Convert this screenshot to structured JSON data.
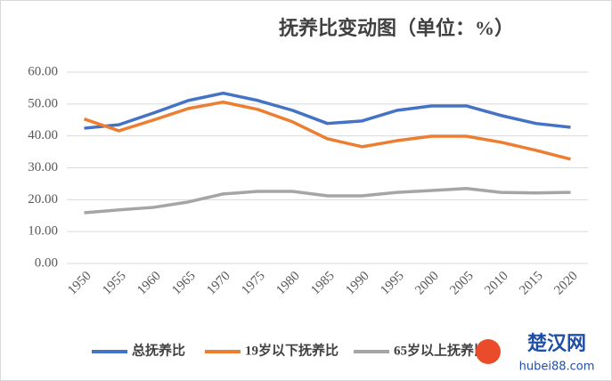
{
  "chart_data": {
    "type": "line",
    "title": "抚养比变动图（单位：%）",
    "categories": [
      "1950",
      "1955",
      "1960",
      "1965",
      "1970",
      "1975",
      "1980",
      "1985",
      "1990",
      "1995",
      "2000",
      "2005",
      "2010",
      "2015",
      "2020"
    ],
    "series": [
      {
        "name": "总抚养比",
        "color": "#4472c4",
        "values": [
          42.4,
          43.5,
          47.2,
          51.1,
          53.4,
          51.1,
          48.0,
          43.9,
          44.7,
          48.0,
          49.4,
          49.4,
          46.4,
          43.9,
          42.7
        ]
      },
      {
        "name": "19岁以下抚养比",
        "color": "#ed7d31",
        "values": [
          45.3,
          41.6,
          45.0,
          48.6,
          50.6,
          48.3,
          44.4,
          39.1,
          36.6,
          38.5,
          39.9,
          39.9,
          38.0,
          35.5,
          32.7
        ]
      },
      {
        "name": "65岁以上抚养比",
        "color": "#a5a5a5",
        "values": [
          15.9,
          16.8,
          17.6,
          19.3,
          21.8,
          22.6,
          22.6,
          21.2,
          21.2,
          22.3,
          22.9,
          23.5,
          22.3,
          22.1,
          22.3
        ]
      }
    ],
    "ylim": [
      0,
      60
    ],
    "yticks": [
      {
        "value": 0,
        "label": "0.00"
      },
      {
        "value": 10,
        "label": "10.00"
      },
      {
        "value": 20,
        "label": "20.00"
      },
      {
        "value": 30,
        "label": "30.00"
      },
      {
        "value": 40,
        "label": "40.00"
      },
      {
        "value": 50,
        "label": "50.00"
      },
      {
        "value": 60,
        "label": "60.00"
      }
    ],
    "grid": true,
    "legend": "bottom",
    "annotations": [
      "楚汉网",
      "hubei88.com"
    ]
  }
}
